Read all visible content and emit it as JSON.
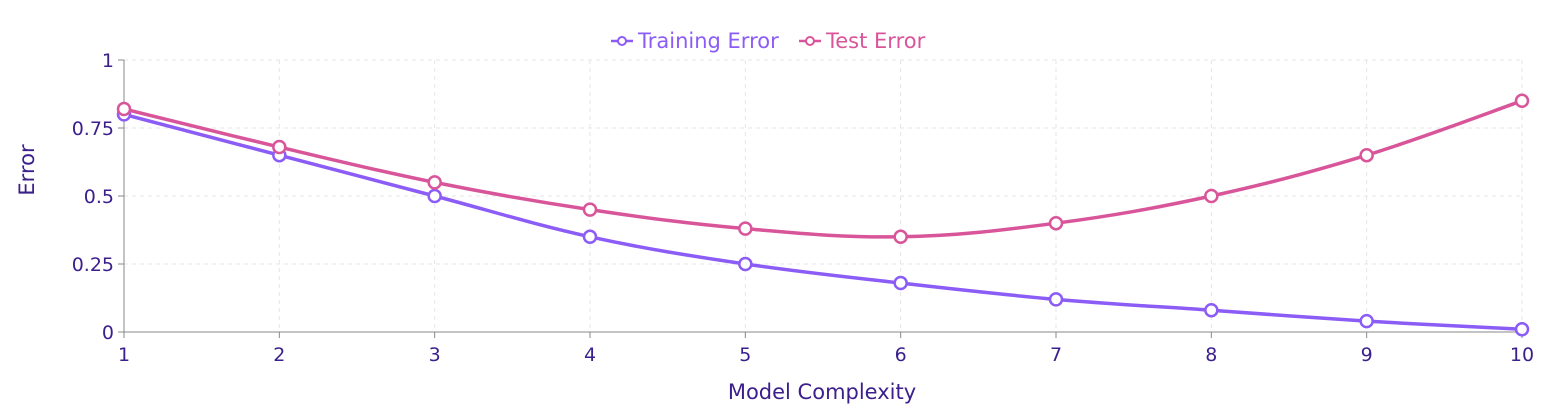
{
  "chart_data": {
    "type": "line",
    "title": "",
    "xlabel": "Model Complexity",
    "ylabel": "Error",
    "x": [
      1,
      2,
      3,
      4,
      5,
      6,
      7,
      8,
      9,
      10
    ],
    "xlim": [
      1,
      10
    ],
    "ylim": [
      0,
      1
    ],
    "x_ticks": [
      "1",
      "2",
      "3",
      "4",
      "5",
      "6",
      "7",
      "8",
      "9",
      "10"
    ],
    "y_ticks": [
      "0",
      "0.25",
      "0.5",
      "0.75",
      "1"
    ],
    "y_tick_values": [
      0,
      0.25,
      0.5,
      0.75,
      1
    ],
    "grid": true,
    "legend_position": "top-center",
    "series": [
      {
        "name": "Training Error",
        "color": "#8b5cf6",
        "values": [
          0.8,
          0.65,
          0.5,
          0.35,
          0.25,
          0.18,
          0.12,
          0.08,
          0.04,
          0.01
        ]
      },
      {
        "name": "Test Error",
        "color": "#d9559a",
        "values": [
          0.82,
          0.68,
          0.55,
          0.45,
          0.38,
          0.35,
          0.4,
          0.5,
          0.65,
          0.85
        ]
      }
    ],
    "colors": {
      "axis_text": "#3b1f8c",
      "axis_line": "#888888",
      "grid": "#e6e6e6"
    }
  }
}
